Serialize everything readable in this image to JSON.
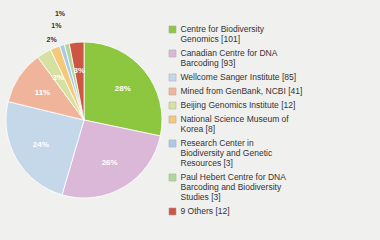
{
  "chart_data": {
    "type": "pie",
    "categories": [
      "Centre for Biodiversity\nGenomics [101]",
      "Canadian Centre for DNA\nBarcoding [93]",
      "Wellcome Sanger Institute [85]",
      "Mined from GenBank, NCBI [41]",
      "Beijing Genomics Institute [12]",
      "National Science Museum of\nKorea [8]",
      "Research Center in\nBiodiversity and Genetic\nResources [3]",
      "Paul Hebert Centre for DNA\nBarcoding and Biodiversity\nStudies [3]",
      "9 Others [12]"
    ],
    "values": [
      28,
      26,
      24,
      11,
      3,
      2,
      1,
      1,
      3
    ],
    "value_labels": [
      "28%",
      "26%",
      "24%",
      "11%",
      "3%",
      "2%",
      "1%",
      "1%",
      "3%"
    ],
    "colors": [
      "#8dc63f",
      "#dbb8d8",
      "#c5d8ea",
      "#f0b49a",
      "#d6e0a0",
      "#f5c97a",
      "#adc8e8",
      "#b0d898",
      "#cc5544"
    ],
    "data_labels": true,
    "legend": "right"
  }
}
